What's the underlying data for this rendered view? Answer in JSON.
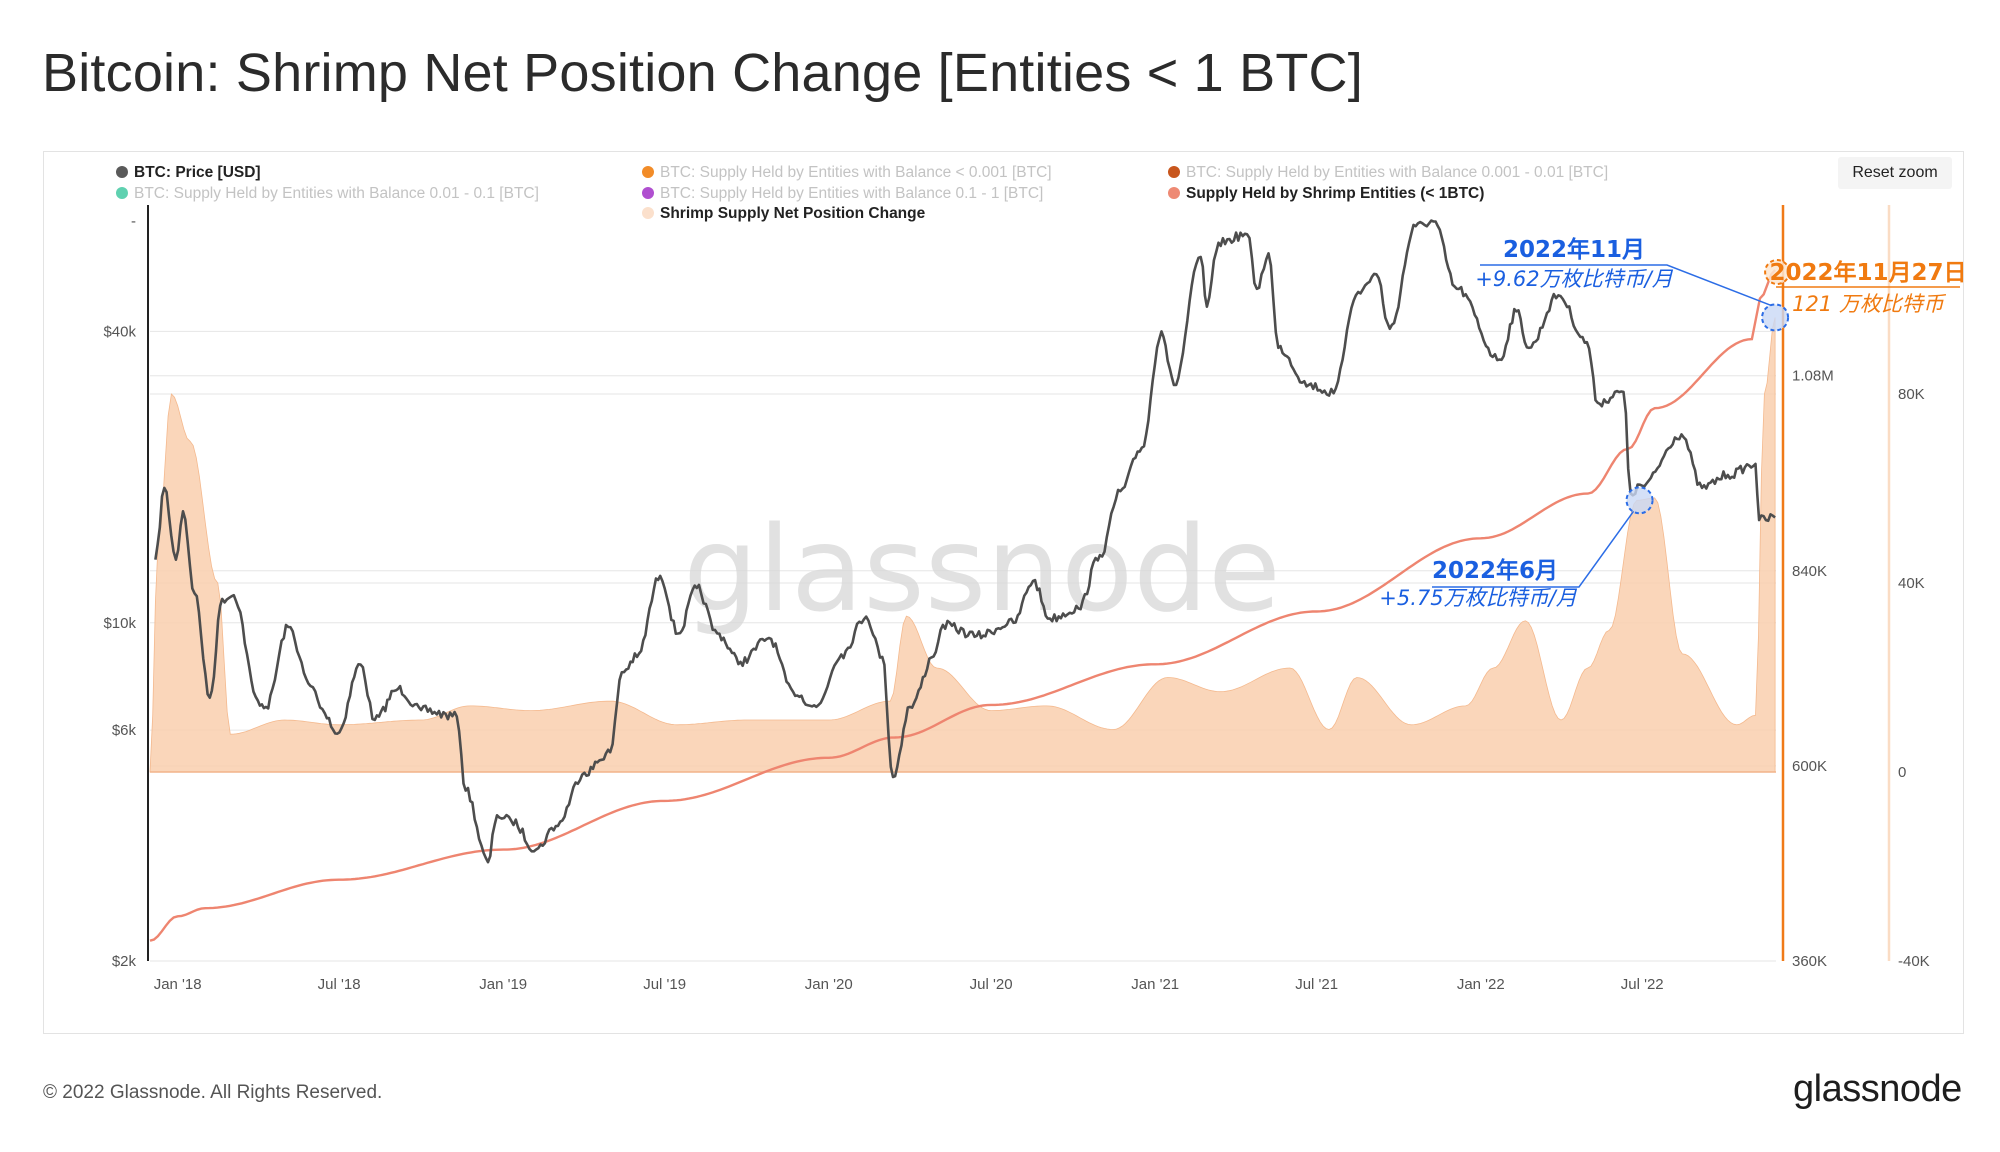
{
  "page": {
    "title": "Bitcoin: Shrimp Net Position Change [Entities < 1 BTC]",
    "reset_zoom_label": "Reset zoom",
    "copyright": "© 2022 Glassnode. All Rights Reserved.",
    "logo_text": "glassnode",
    "watermark": "glassnode"
  },
  "chart_data": {
    "type": "line",
    "title": "Bitcoin: Shrimp Net Position Change [Entities < 1 BTC]",
    "legend": [
      {
        "name": "BTC: Price [USD]",
        "color": "#5a5a5a",
        "active": true
      },
      {
        "name": "BTC: Supply Held by Entities with Balance < 0.001 [BTC]",
        "color": "#f28c28",
        "active": false
      },
      {
        "name": "BTC: Supply Held by Entities with Balance 0.001 - 0.01 [BTC]",
        "color": "#c8561d",
        "active": false
      },
      {
        "name": "BTC: Supply Held by Entities with Balance 0.01 - 0.1 [BTC]",
        "color": "#5fd1b0",
        "active": false
      },
      {
        "name": "BTC: Supply Held by Entities with Balance 0.1 - 1 [BTC]",
        "color": "#b04fd0",
        "active": false
      },
      {
        "name": "Supply Held by Shrimp Entities (< 1BTC)",
        "color": "#ee8a74",
        "active": true
      },
      {
        "name": "Shrimp Supply Net Position Change",
        "color": "#fbe0cc",
        "active": true
      }
    ],
    "legend_placement": "top",
    "x_axis": {
      "type": "date",
      "range": [
        "2017-12-01",
        "2022-11-28"
      ],
      "ticks": [
        {
          "date": "2018-01-01",
          "label": "Jan '18"
        },
        {
          "date": "2018-07-01",
          "label": "Jul '18"
        },
        {
          "date": "2019-01-01",
          "label": "Jan '19"
        },
        {
          "date": "2019-07-01",
          "label": "Jul '19"
        },
        {
          "date": "2020-01-01",
          "label": "Jan '20"
        },
        {
          "date": "2020-07-01",
          "label": "Jul '20"
        },
        {
          "date": "2021-01-01",
          "label": "Jan '21"
        },
        {
          "date": "2021-07-01",
          "label": "Jul '21"
        },
        {
          "date": "2022-01-01",
          "label": "Jan '22"
        },
        {
          "date": "2022-07-01",
          "label": "Jul '22"
        }
      ]
    },
    "y_axes": [
      {
        "id": "price",
        "position": "left",
        "scale": "log",
        "unit": "USD",
        "range": [
          2000,
          73000
        ],
        "ticks": [
          {
            "value": 2000,
            "label": "$2k"
          },
          {
            "value": 6000,
            "label": "$6k"
          },
          {
            "value": 10000,
            "label": "$10k"
          },
          {
            "value": 40000,
            "label": "$40k"
          }
        ],
        "top_label": "-"
      },
      {
        "id": "supply",
        "position": "right",
        "scale": "linear",
        "unit": "BTC",
        "range": [
          360000,
          1290000
        ],
        "ticks": [
          {
            "value": 360000,
            "label": "360K"
          },
          {
            "value": 600000,
            "label": "600K"
          },
          {
            "value": 840000,
            "label": "840K"
          },
          {
            "value": 1080000,
            "label": "1.08M"
          }
        ]
      },
      {
        "id": "change",
        "position": "right",
        "scale": "linear",
        "unit": "BTC",
        "range": [
          -40000,
          120000
        ],
        "ticks": [
          {
            "value": -40000,
            "label": "-40K"
          },
          {
            "value": 0,
            "label": "0"
          },
          {
            "value": 40000,
            "label": "40K"
          },
          {
            "value": 80000,
            "label": "80K"
          }
        ]
      }
    ],
    "grid": true,
    "series": [
      {
        "name": "BTC: Price [USD]",
        "axis": "price",
        "color": "#4d4d4d",
        "points": [
          [
            "2017-12-07",
            13500
          ],
          [
            "2017-12-17",
            19000
          ],
          [
            "2017-12-30",
            13500
          ],
          [
            "2018-01-07",
            17000
          ],
          [
            "2018-01-20",
            11500
          ],
          [
            "2018-02-06",
            7000
          ],
          [
            "2018-02-20",
            11200
          ],
          [
            "2018-03-05",
            11400
          ],
          [
            "2018-04-01",
            6900
          ],
          [
            "2018-04-10",
            6700
          ],
          [
            "2018-05-05",
            9800
          ],
          [
            "2018-05-30",
            7400
          ],
          [
            "2018-06-15",
            6500
          ],
          [
            "2018-06-29",
            5900
          ],
          [
            "2018-07-25",
            8200
          ],
          [
            "2018-08-10",
            6300
          ],
          [
            "2018-09-05",
            7300
          ],
          [
            "2018-10-01",
            6600
          ],
          [
            "2018-11-10",
            6400
          ],
          [
            "2018-11-20",
            4500
          ],
          [
            "2018-12-15",
            3200
          ],
          [
            "2018-12-25",
            4000
          ],
          [
            "2019-01-10",
            3900
          ],
          [
            "2019-02-07",
            3400
          ],
          [
            "2019-03-01",
            3800
          ],
          [
            "2019-04-02",
            4900
          ],
          [
            "2019-05-01",
            5400
          ],
          [
            "2019-05-14",
            7900
          ],
          [
            "2019-05-31",
            8500
          ],
          [
            "2019-06-26",
            12500
          ],
          [
            "2019-07-16",
            9500
          ],
          [
            "2019-08-06",
            11800
          ],
          [
            "2019-08-29",
            9500
          ],
          [
            "2019-09-24",
            8300
          ],
          [
            "2019-10-26",
            9300
          ],
          [
            "2019-11-22",
            7200
          ],
          [
            "2019-12-18",
            6700
          ],
          [
            "2020-01-15",
            8600
          ],
          [
            "2020-02-12",
            10300
          ],
          [
            "2020-03-01",
            8500
          ],
          [
            "2020-03-13",
            4800
          ],
          [
            "2020-04-01",
            6700
          ],
          [
            "2020-04-30",
            8700
          ],
          [
            "2020-05-08",
            9900
          ],
          [
            "2020-06-15",
            9400
          ],
          [
            "2020-07-26",
            10000
          ],
          [
            "2020-08-17",
            12200
          ],
          [
            "2020-09-05",
            10200
          ],
          [
            "2020-10-07",
            10700
          ],
          [
            "2020-10-31",
            13800
          ],
          [
            "2020-11-23",
            18700
          ],
          [
            "2020-12-17",
            23000
          ],
          [
            "2021-01-08",
            40000
          ],
          [
            "2021-01-22",
            31000
          ],
          [
            "2021-02-21",
            57000
          ],
          [
            "2021-02-28",
            45000
          ],
          [
            "2021-03-13",
            61000
          ],
          [
            "2021-04-14",
            63500
          ],
          [
            "2021-04-25",
            49000
          ],
          [
            "2021-05-08",
            58000
          ],
          [
            "2021-05-19",
            37000
          ],
          [
            "2021-06-22",
            31000
          ],
          [
            "2021-07-20",
            29800
          ],
          [
            "2021-08-14",
            47500
          ],
          [
            "2021-09-06",
            52500
          ],
          [
            "2021-09-21",
            40500
          ],
          [
            "2021-10-20",
            66000
          ],
          [
            "2021-11-09",
            67500
          ],
          [
            "2021-12-05",
            49000
          ],
          [
            "2022-01-22",
            35000
          ],
          [
            "2022-02-10",
            44000
          ],
          [
            "2022-02-24",
            37000
          ],
          [
            "2022-03-29",
            47500
          ],
          [
            "2022-04-30",
            38000
          ],
          [
            "2022-05-12",
            28500
          ],
          [
            "2022-06-10",
            30000
          ],
          [
            "2022-06-18",
            18500
          ],
          [
            "2022-07-01",
            19200
          ],
          [
            "2022-08-14",
            24500
          ],
          [
            "2022-09-06",
            19000
          ],
          [
            "2022-10-05",
            20200
          ],
          [
            "2022-11-05",
            21300
          ],
          [
            "2022-11-09",
            16300
          ],
          [
            "2022-11-27",
            16500
          ]
        ]
      },
      {
        "name": "Supply Held by Shrimp Entities (< 1BTC)",
        "axis": "supply",
        "color": "#ee8570",
        "points": [
          [
            "2017-12-01",
            385000
          ],
          [
            "2018-01-01",
            415000
          ],
          [
            "2018-02-01",
            425000
          ],
          [
            "2018-07-01",
            460000
          ],
          [
            "2019-01-01",
            497000
          ],
          [
            "2019-07-01",
            557000
          ],
          [
            "2020-01-01",
            610000
          ],
          [
            "2020-03-15",
            635000
          ],
          [
            "2020-07-01",
            675000
          ],
          [
            "2021-01-01",
            725000
          ],
          [
            "2021-07-01",
            790000
          ],
          [
            "2022-01-01",
            880000
          ],
          [
            "2022-05-01",
            935000
          ],
          [
            "2022-06-15",
            990000
          ],
          [
            "2022-07-15",
            1040000
          ],
          [
            "2022-11-01",
            1125000
          ],
          [
            "2022-11-10",
            1175000
          ],
          [
            "2022-11-27",
            1210000
          ]
        ]
      },
      {
        "name": "Shrimp Supply Net Position Change",
        "axis": "change",
        "type": "area",
        "color": "#f9cfae",
        "points": [
          [
            "2017-12-01",
            0
          ],
          [
            "2017-12-10",
            48000
          ],
          [
            "2017-12-25",
            80000
          ],
          [
            "2018-01-15",
            70000
          ],
          [
            "2018-02-15",
            40000
          ],
          [
            "2018-03-01",
            8000
          ],
          [
            "2018-05-01",
            11000
          ],
          [
            "2018-07-01",
            10000
          ],
          [
            "2018-10-01",
            11000
          ],
          [
            "2018-11-25",
            14000
          ],
          [
            "2019-02-01",
            13000
          ],
          [
            "2019-05-01",
            15000
          ],
          [
            "2019-07-15",
            10000
          ],
          [
            "2019-10-01",
            11000
          ],
          [
            "2020-01-01",
            11000
          ],
          [
            "2020-03-10",
            15000
          ],
          [
            "2020-03-28",
            33000
          ],
          [
            "2020-05-01",
            22000
          ],
          [
            "2020-07-01",
            13000
          ],
          [
            "2020-09-01",
            14000
          ],
          [
            "2020-11-15",
            9000
          ],
          [
            "2021-01-15",
            20000
          ],
          [
            "2021-03-15",
            17000
          ],
          [
            "2021-06-01",
            22000
          ],
          [
            "2021-07-15",
            9000
          ],
          [
            "2021-08-15",
            20000
          ],
          [
            "2021-10-15",
            10000
          ],
          [
            "2021-12-15",
            14000
          ],
          [
            "2022-01-15",
            22000
          ],
          [
            "2022-02-20",
            32000
          ],
          [
            "2022-04-01",
            11000
          ],
          [
            "2022-05-01",
            22000
          ],
          [
            "2022-05-25",
            30000
          ],
          [
            "2022-06-25",
            57500
          ],
          [
            "2022-07-15",
            58000
          ],
          [
            "2022-08-15",
            25000
          ],
          [
            "2022-10-15",
            10000
          ],
          [
            "2022-11-05",
            12000
          ],
          [
            "2022-11-15",
            80000
          ],
          [
            "2022-11-27",
            96200
          ]
        ]
      }
    ],
    "annotations": [
      {
        "id": "jun22",
        "title": "2022年6月",
        "text": "+5.75万枚比特币/月",
        "color": "#1a5fe0",
        "date": "2022-06-28",
        "value": 57500,
        "axis": "change"
      },
      {
        "id": "nov22",
        "title": "2022年11月",
        "text": "+9.62万枚比特币/月",
        "color": "#1a5fe0",
        "date": "2022-11-27",
        "value": 96200,
        "axis": "change"
      },
      {
        "id": "nov27",
        "title": "2022年11月27日",
        "text": "121 万枚比特币",
        "color": "#f07a10",
        "date": "2022-11-27",
        "value": 1210000,
        "axis": "supply"
      }
    ]
  }
}
